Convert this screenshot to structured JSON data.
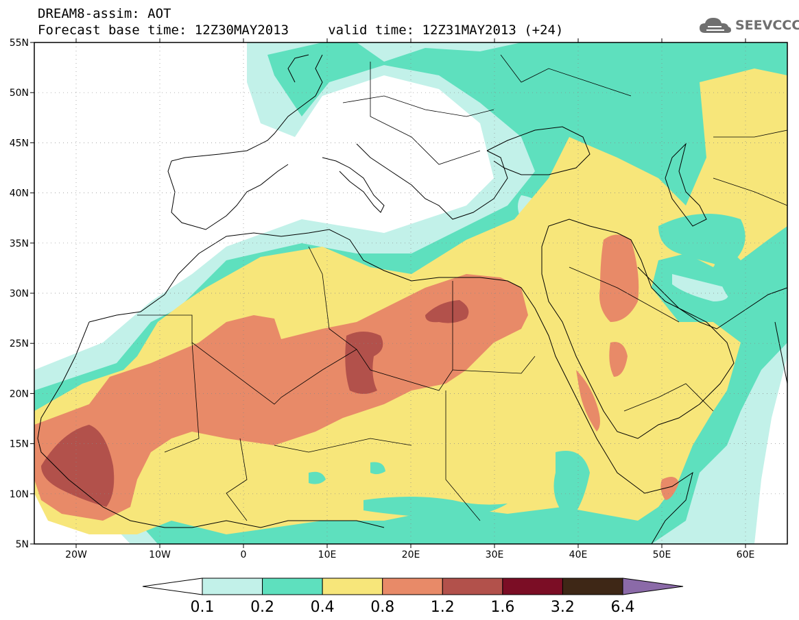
{
  "header": {
    "title_line1": "DREAM8-assim: AOT",
    "title_line2": "Forecast base time: 12Z30MAY2013     valid time: 12Z31MAY2013 (+24)",
    "logo_text": "SEEVCCC"
  },
  "map": {
    "lat_labels": [
      "55N",
      "50N",
      "45N",
      "40N",
      "35N",
      "30N",
      "25N",
      "20N",
      "15N",
      "10N",
      "5N"
    ],
    "lon_labels": [
      "20W",
      "10W",
      "0",
      "10E",
      "20E",
      "30E",
      "40E",
      "50E",
      "60E"
    ],
    "lat_range": [
      5,
      55
    ],
    "lon_range": [
      -25,
      65
    ],
    "field": "AOT"
  },
  "colorbar": {
    "labels": [
      "0.1",
      "0.2",
      "0.4",
      "0.8",
      "1.2",
      "1.6",
      "3.2",
      "6.4"
    ],
    "colors": [
      "#ffffff",
      "#c2f1e9",
      "#5ee0be",
      "#f7e67a",
      "#e88a68",
      "#b2514b",
      "#7b0d25",
      "#3e2716",
      "#8b6aa8"
    ]
  }
}
